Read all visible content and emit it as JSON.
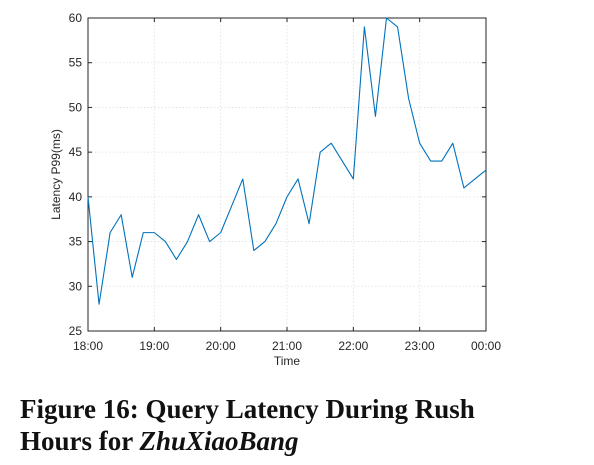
{
  "chart_data": {
    "type": "line",
    "title": "",
    "xlabel": "Time",
    "ylabel": "Latency P99(ms)",
    "x_tick_labels": [
      "18:00",
      "19:00",
      "20:00",
      "21:00",
      "22:00",
      "23:00",
      "00:00"
    ],
    "x_tick_minutes": [
      0,
      60,
      120,
      180,
      240,
      300,
      360
    ],
    "xlim_minutes": [
      0,
      360
    ],
    "y_tick_labels": [
      "25",
      "30",
      "35",
      "40",
      "45",
      "50",
      "55",
      "60"
    ],
    "ylim": [
      25,
      60
    ],
    "grid": true,
    "series": [
      {
        "color": "#0072BD",
        "x_time": [
          "18:00",
          "18:10",
          "18:20",
          "18:30",
          "18:40",
          "18:50",
          "19:00",
          "19:10",
          "19:20",
          "19:30",
          "19:40",
          "19:50",
          "20:00",
          "20:10",
          "20:20",
          "20:30",
          "20:40",
          "20:50",
          "21:00",
          "21:10",
          "21:20",
          "21:30",
          "21:40",
          "21:50",
          "22:00",
          "22:10",
          "22:20",
          "22:30",
          "22:40",
          "22:50",
          "23:00",
          "23:10",
          "23:20",
          "23:30",
          "23:40",
          "23:50",
          "00:00"
        ],
        "y": [
          40,
          28,
          36,
          38,
          31,
          36,
          36,
          35,
          33,
          35,
          38,
          35,
          36,
          39,
          42,
          34,
          35,
          37,
          40,
          42,
          37,
          45,
          46,
          44,
          42,
          59,
          49,
          60,
          59,
          51,
          46,
          44,
          44,
          46,
          41,
          42,
          43
        ]
      }
    ]
  },
  "caption": {
    "prefix": "Figure 16: Query Latency During Rush Hours for ",
    "emphasis": "ZhuXiaoBang"
  }
}
